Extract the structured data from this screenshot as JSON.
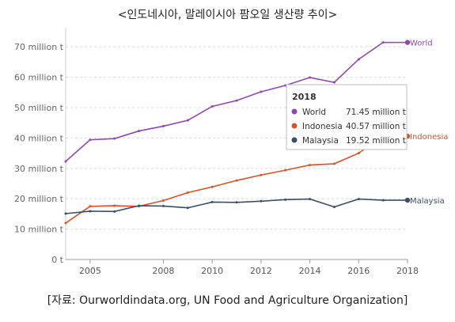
{
  "title": "<인도네시아, 말레이시아 팜오일 생산량 추이>",
  "source": "[자료: Ourworldindata.org, UN Food and Agriculture Organization]",
  "chart_data": {
    "type": "line",
    "x": [
      2004,
      2005,
      2006,
      2007,
      2008,
      2009,
      2010,
      2011,
      2012,
      2013,
      2014,
      2015,
      2016,
      2017,
      2018
    ],
    "xlim": [
      2004,
      2018
    ],
    "ylim": [
      0,
      75
    ],
    "x_ticks": [
      {
        "value": 2005,
        "label": "2005"
      },
      {
        "value": 2008,
        "label": "2008"
      },
      {
        "value": 2010,
        "label": "2010"
      },
      {
        "value": 2012,
        "label": "2012"
      },
      {
        "value": 2014,
        "label": "2014"
      },
      {
        "value": 2016,
        "label": "2016"
      },
      {
        "value": 2018,
        "label": "2018"
      }
    ],
    "y_ticks": [
      {
        "value": 0,
        "label": "0 t"
      },
      {
        "value": 10,
        "label": "10 million t"
      },
      {
        "value": 20,
        "label": "20 million t"
      },
      {
        "value": 30,
        "label": "30 million t"
      },
      {
        "value": 40,
        "label": "40 million t"
      },
      {
        "value": 50,
        "label": "50 million t"
      },
      {
        "value": 60,
        "label": "60 million t"
      },
      {
        "value": 70,
        "label": "70 million t"
      }
    ],
    "grid": true,
    "series": [
      {
        "name": "World",
        "color": "#8c4ab0",
        "values": [
          32.3,
          39.4,
          39.8,
          42.3,
          43.9,
          45.8,
          50.4,
          52.3,
          55.2,
          57.3,
          59.9,
          58.3,
          65.9,
          71.45,
          71.45
        ]
      },
      {
        "name": "Indonesia",
        "color": "#d2542a",
        "values": [
          12.0,
          17.5,
          17.7,
          17.5,
          19.4,
          22.0,
          23.9,
          26.0,
          27.8,
          29.4,
          31.1,
          31.5,
          35.0,
          40.57,
          40.57
        ]
      },
      {
        "name": "Malaysia",
        "color": "#3c4e66",
        "values": [
          15.1,
          15.9,
          15.8,
          17.7,
          17.6,
          17.0,
          18.9,
          18.8,
          19.2,
          19.7,
          19.9,
          17.3,
          19.9,
          19.52,
          19.52
        ]
      }
    ],
    "tooltip": {
      "year": "2018",
      "rows": [
        {
          "name": "World",
          "value": "71.45 million t",
          "color": "#8c4ab0"
        },
        {
          "name": "Indonesia",
          "value": "40.57 million t",
          "color": "#d2542a"
        },
        {
          "name": "Malaysia",
          "value": "19.52 million t",
          "color": "#3c4e66"
        }
      ]
    }
  }
}
